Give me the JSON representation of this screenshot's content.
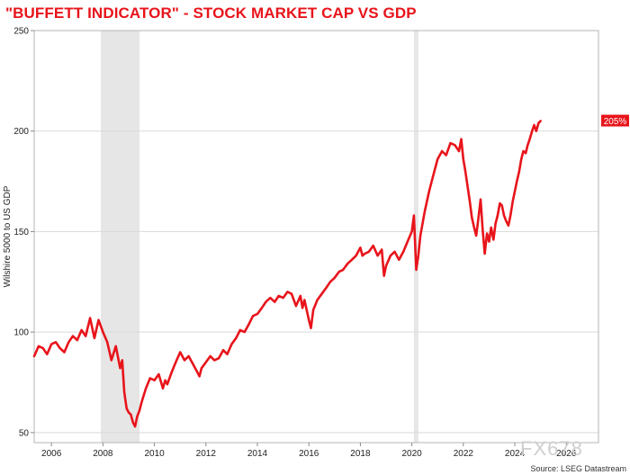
{
  "title": "\"BUFFETT INDICATOR\" - STOCK MARKET CAP VS GDP",
  "source": "Source: LSEG Datastream",
  "watermark": "FX678",
  "colors": {
    "line": "#e8141b",
    "recession": "#e6e6e6",
    "grid": "#d9d9d9",
    "badge": "#e8141b"
  },
  "chart_data": {
    "type": "line",
    "title": "\"BUFFETT INDICATOR\" - STOCK MARKET CAP VS GDP",
    "xlabel": "",
    "ylabel": "Wilshire 5000 to US GDP",
    "ylim": [
      45,
      250
    ],
    "xlim": [
      2005.33,
      2027.25
    ],
    "yticks": [
      50,
      100,
      150,
      200,
      250
    ],
    "xticks": [
      2006,
      2008,
      2010,
      2012,
      2014,
      2016,
      2018,
      2020,
      2022,
      2024,
      2026
    ],
    "grid": true,
    "recessions": [
      [
        2007.92,
        2009.42
      ],
      [
        2020.08,
        2020.25
      ]
    ],
    "last_value_label": "205%",
    "series": [
      {
        "name": "",
        "x": [
          2005.33,
          2005.5,
          2005.67,
          2005.83,
          2006.0,
          2006.17,
          2006.33,
          2006.5,
          2006.67,
          2006.83,
          2007.0,
          2007.17,
          2007.33,
          2007.5,
          2007.67,
          2007.83,
          2008.0,
          2008.17,
          2008.33,
          2008.5,
          2008.67,
          2008.75,
          2008.83,
          2008.92,
          2009.0,
          2009.08,
          2009.17,
          2009.25,
          2009.33,
          2009.42,
          2009.5,
          2009.67,
          2009.83,
          2010.0,
          2010.17,
          2010.33,
          2010.42,
          2010.5,
          2010.67,
          2010.83,
          2011.0,
          2011.17,
          2011.33,
          2011.5,
          2011.67,
          2011.75,
          2011.83,
          2012.0,
          2012.17,
          2012.33,
          2012.5,
          2012.67,
          2012.83,
          2013.0,
          2013.17,
          2013.33,
          2013.5,
          2013.67,
          2013.83,
          2014.0,
          2014.17,
          2014.33,
          2014.5,
          2014.67,
          2014.83,
          2015.0,
          2015.17,
          2015.33,
          2015.5,
          2015.67,
          2015.75,
          2015.83,
          2016.0,
          2016.08,
          2016.17,
          2016.33,
          2016.5,
          2016.67,
          2016.83,
          2017.0,
          2017.17,
          2017.33,
          2017.5,
          2017.67,
          2017.83,
          2018.0,
          2018.08,
          2018.17,
          2018.33,
          2018.5,
          2018.67,
          2018.83,
          2018.92,
          2019.0,
          2019.17,
          2019.33,
          2019.5,
          2019.67,
          2019.83,
          2020.0,
          2020.08,
          2020.17,
          2020.25,
          2020.33,
          2020.5,
          2020.67,
          2020.83,
          2021.0,
          2021.17,
          2021.33,
          2021.5,
          2021.67,
          2021.83,
          2021.92,
          2022.0,
          2022.08,
          2022.17,
          2022.25,
          2022.33,
          2022.42,
          2022.5,
          2022.58,
          2022.67,
          2022.75,
          2022.83,
          2022.92,
          2023.0,
          2023.08,
          2023.17,
          2023.25,
          2023.33,
          2023.42,
          2023.5,
          2023.58,
          2023.67,
          2023.75,
          2023.83,
          2023.92,
          2024.0,
          2024.08,
          2024.17,
          2024.25,
          2024.33,
          2024.42,
          2024.5,
          2024.58,
          2024.67,
          2024.75,
          2024.83,
          2024.92,
          2025.0
        ],
        "values": [
          88,
          93,
          92,
          89,
          94,
          95,
          92,
          90,
          95,
          98,
          96,
          101,
          98,
          107,
          97,
          106,
          100,
          95,
          86,
          93,
          82,
          86,
          70,
          62,
          60,
          59,
          55,
          53,
          58,
          61,
          65,
          72,
          77,
          76,
          79,
          72,
          76,
          74,
          80,
          85,
          90,
          86,
          88,
          84,
          80,
          78,
          82,
          85,
          88,
          86,
          87,
          91,
          89,
          94,
          97,
          101,
          100,
          104,
          108,
          109,
          112,
          115,
          117,
          115,
          118,
          117,
          120,
          119,
          113,
          118,
          112,
          116,
          106,
          102,
          111,
          116,
          119,
          122,
          125,
          127,
          130,
          131,
          134,
          136,
          138,
          142,
          138,
          139,
          140,
          143,
          138,
          141,
          128,
          133,
          138,
          140,
          136,
          140,
          145,
          150,
          158,
          131,
          138,
          148,
          160,
          170,
          178,
          186,
          190,
          188,
          194,
          193,
          190,
          196,
          186,
          180,
          172,
          165,
          157,
          152,
          148,
          156,
          166,
          151,
          139,
          149,
          145,
          152,
          146,
          154,
          158,
          164,
          163,
          158,
          155,
          153,
          158,
          165,
          170,
          175,
          180,
          186,
          190,
          189,
          193,
          196,
          200,
          203,
          200,
          204,
          205
        ]
      }
    ]
  }
}
